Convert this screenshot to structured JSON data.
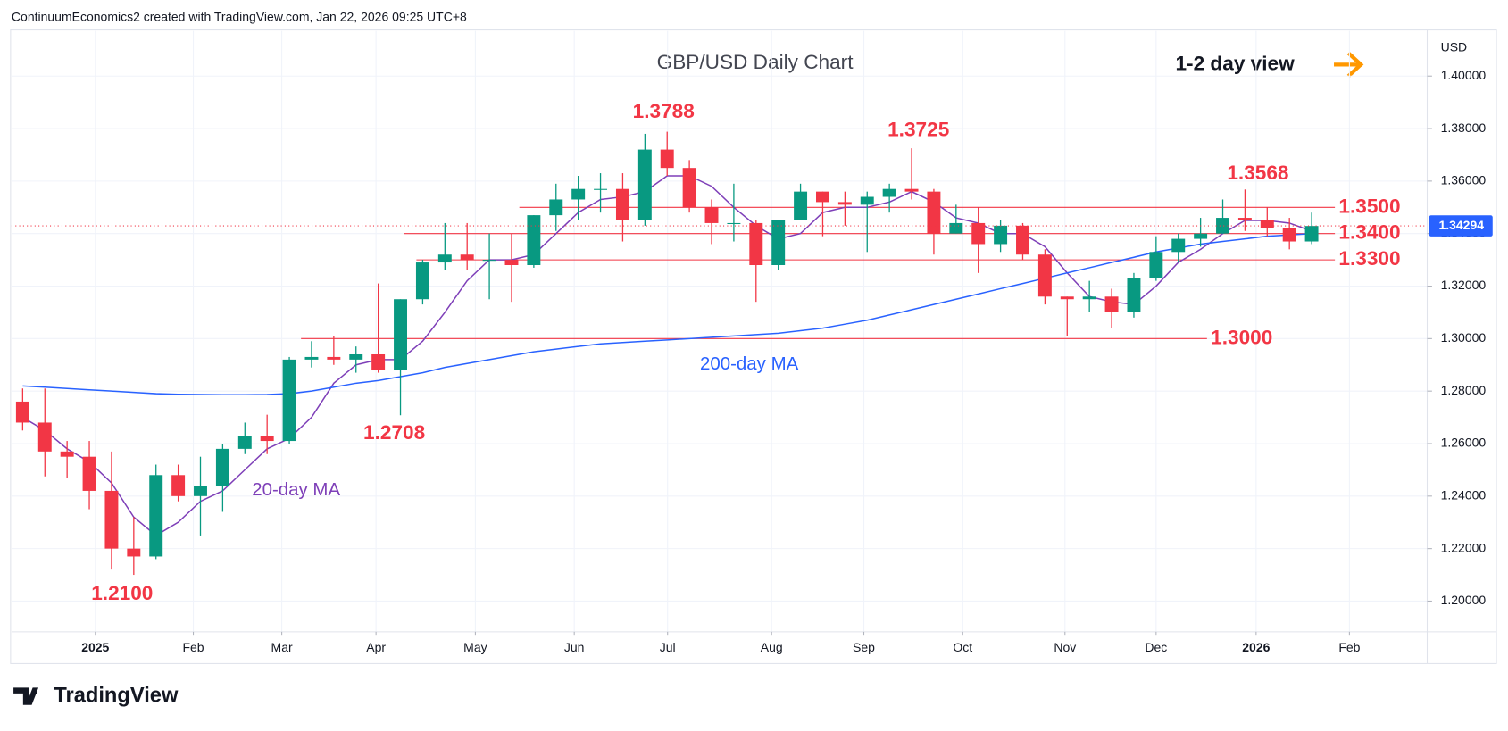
{
  "header": "ContinuumEconomics2 created with TradingView.com, Jan 22, 2026 09:25 UTC+8",
  "logo": "TradingView",
  "chart_data": {
    "type": "candlestick",
    "title": "GBP/USD Daily Chart",
    "view": "1-2 day view",
    "currency": "USD",
    "last_price": {
      "value": 1.34294,
      "label": "1.34294"
    },
    "categories": [
      null,
      null,
      null,
      null,
      null,
      null,
      null,
      null,
      null,
      null,
      null,
      null,
      null,
      null,
      null,
      null,
      null,
      null,
      null,
      null,
      null,
      null,
      null,
      null,
      null,
      null,
      null,
      null,
      null,
      null,
      null,
      null,
      null,
      null,
      null,
      null,
      null,
      null,
      null,
      null,
      null,
      null,
      null,
      null,
      null,
      null,
      null,
      null,
      null,
      null,
      null,
      null,
      null,
      null,
      null,
      null,
      null,
      null,
      null
    ],
    "ohlc": {
      "open": [
        1.276,
        1.268,
        1.257,
        1.255,
        1.242,
        1.22,
        1.217,
        1.248,
        1.24,
        1.244,
        1.258,
        1.263,
        1.261,
        1.292,
        1.293,
        1.292,
        1.294,
        1.288,
        1.315,
        1.329,
        1.332,
        1.33,
        1.33,
        1.328,
        1.347,
        1.353,
        1.357,
        1.357,
        1.345,
        1.372,
        1.365,
        1.35,
        1.344,
        1.344,
        1.328,
        1.345,
        1.356,
        1.352,
        1.351,
        1.354,
        1.357,
        1.356,
        1.34,
        1.344,
        1.336,
        1.343,
        1.332,
        1.316,
        1.315,
        1.316,
        1.31,
        1.323,
        1.333,
        1.338,
        1.34,
        1.346,
        1.345,
        1.342,
        1.337
      ],
      "high": [
        1.281,
        1.281,
        1.261,
        1.261,
        1.257,
        1.232,
        1.252,
        1.252,
        1.255,
        1.26,
        1.268,
        1.271,
        1.293,
        1.299,
        1.301,
        1.297,
        1.321,
        1.315,
        1.33,
        1.344,
        1.344,
        1.34,
        1.34,
        1.347,
        1.359,
        1.362,
        1.363,
        1.363,
        1.378,
        1.3788,
        1.368,
        1.353,
        1.359,
        1.345,
        1.345,
        1.359,
        1.356,
        1.356,
        1.356,
        1.359,
        1.3725,
        1.357,
        1.351,
        1.35,
        1.345,
        1.344,
        1.334,
        1.316,
        1.322,
        1.319,
        1.325,
        1.339,
        1.34,
        1.346,
        1.353,
        1.3568,
        1.35,
        1.346,
        1.348
      ],
      "low": [
        1.265,
        1.2475,
        1.247,
        1.235,
        1.212,
        1.21,
        1.216,
        1.238,
        1.225,
        1.234,
        1.256,
        1.256,
        1.26,
        1.289,
        1.29,
        1.287,
        1.287,
        1.2708,
        1.313,
        1.326,
        1.326,
        1.315,
        1.314,
        1.327,
        1.341,
        1.345,
        1.348,
        1.337,
        1.343,
        1.362,
        1.348,
        1.336,
        1.337,
        1.314,
        1.326,
        1.345,
        1.339,
        1.343,
        1.333,
        1.348,
        1.353,
        1.332,
        1.34,
        1.325,
        1.333,
        1.33,
        1.313,
        1.301,
        1.31,
        1.304,
        1.308,
        1.322,
        1.329,
        1.335,
        1.34,
        1.341,
        1.339,
        1.334,
        1.336
      ],
      "close": [
        1.268,
        1.257,
        1.255,
        1.242,
        1.22,
        1.217,
        1.248,
        1.24,
        1.244,
        1.258,
        1.263,
        1.261,
        1.292,
        1.293,
        1.292,
        1.294,
        1.288,
        1.315,
        1.329,
        1.332,
        1.33,
        1.33,
        1.328,
        1.347,
        1.353,
        1.357,
        1.357,
        1.345,
        1.372,
        1.365,
        1.35,
        1.344,
        1.344,
        1.328,
        1.345,
        1.356,
        1.352,
        1.351,
        1.354,
        1.357,
        1.356,
        1.34,
        1.344,
        1.336,
        1.343,
        1.332,
        1.316,
        1.315,
        1.316,
        1.31,
        1.323,
        1.333,
        1.338,
        1.34,
        1.346,
        1.345,
        1.342,
        1.337,
        1.3429
      ]
    },
    "up_color": "#089981",
    "down_color": "#f23645",
    "series": [
      {
        "name": "20-day MA",
        "color": "#7e3fb8",
        "values": [
          1.27,
          1.265,
          1.258,
          1.253,
          1.245,
          1.232,
          1.225,
          1.23,
          1.238,
          1.242,
          1.25,
          1.258,
          1.262,
          1.27,
          1.283,
          1.29,
          1.292,
          1.292,
          1.299,
          1.31,
          1.322,
          1.33,
          1.33,
          1.332,
          1.34,
          1.348,
          1.353,
          1.354,
          1.356,
          1.362,
          1.362,
          1.358,
          1.35,
          1.343,
          1.338,
          1.34,
          1.348,
          1.35,
          1.35,
          1.352,
          1.356,
          1.352,
          1.346,
          1.344,
          1.34,
          1.34,
          1.335,
          1.325,
          1.316,
          1.314,
          1.313,
          1.32,
          1.329,
          1.334,
          1.34,
          1.345,
          1.345,
          1.344,
          1.341
        ]
      },
      {
        "name": "200-day MA",
        "color": "#2962ff",
        "values": [
          1.282,
          1.2815,
          1.281,
          1.2805,
          1.28,
          1.2795,
          1.279,
          1.2788,
          1.2787,
          1.2786,
          1.2786,
          1.2787,
          1.279,
          1.28,
          1.2815,
          1.283,
          1.284,
          1.2855,
          1.287,
          1.289,
          1.2905,
          1.292,
          1.2935,
          1.295,
          1.296,
          1.297,
          1.298,
          1.2985,
          1.299,
          1.2995,
          1.3,
          1.3005,
          1.301,
          1.3015,
          1.302,
          1.303,
          1.304,
          1.3055,
          1.307,
          1.309,
          1.311,
          1.313,
          1.315,
          1.317,
          1.319,
          1.321,
          1.323,
          1.325,
          1.327,
          1.329,
          1.331,
          1.333,
          1.3345,
          1.336,
          1.337,
          1.338,
          1.339,
          1.3395,
          1.34
        ]
      }
    ],
    "levels": [
      {
        "value": 1.35,
        "label": "1.3500"
      },
      {
        "value": 1.34,
        "label": "1.3400"
      },
      {
        "value": 1.33,
        "label": "1.3300"
      },
      {
        "value": 1.3,
        "label": "1.3000"
      }
    ],
    "annotations": [
      "1.3788",
      "1.3725",
      "1.3568",
      "1.2708",
      "1.2100"
    ],
    "level_color": "#f23645",
    "xlim": [
      -0.5,
      63.2
    ],
    "xticks": [
      {
        "value": 3.27,
        "label": "2025"
      },
      {
        "value": 7.68,
        "label": "Feb"
      },
      {
        "value": 11.66,
        "label": "Mar"
      },
      {
        "value": 15.9,
        "label": "Apr"
      },
      {
        "value": 20.37,
        "label": "May"
      },
      {
        "value": 24.82,
        "label": "Jun"
      },
      {
        "value": 29.02,
        "label": "Jul"
      },
      {
        "value": 33.7,
        "label": "Aug"
      },
      {
        "value": 37.85,
        "label": "Sep"
      },
      {
        "value": 42.3,
        "label": "Oct"
      },
      {
        "value": 46.9,
        "label": "Nov"
      },
      {
        "value": 51.0,
        "label": "Dec"
      },
      {
        "value": 55.5,
        "label": "2026"
      },
      {
        "value": 59.7,
        "label": "Feb"
      }
    ],
    "ylim": [
      1.1883,
      1.4172
    ],
    "yticks": [
      {
        "value": 1.2,
        "label": "1.20000"
      },
      {
        "value": 1.22,
        "label": "1.22000"
      },
      {
        "value": 1.24,
        "label": "1.24000"
      },
      {
        "value": 1.26,
        "label": "1.26000"
      },
      {
        "value": 1.28,
        "label": "1.28000"
      },
      {
        "value": 1.3,
        "label": "1.30000"
      },
      {
        "value": 1.32,
        "label": "1.32000"
      },
      {
        "value": 1.34,
        "label": "1.34000"
      },
      {
        "value": 1.36,
        "label": "1.36000"
      },
      {
        "value": 1.38,
        "label": "1.38000"
      },
      {
        "value": 1.4,
        "label": "1.40000"
      }
    ],
    "grid": true
  }
}
